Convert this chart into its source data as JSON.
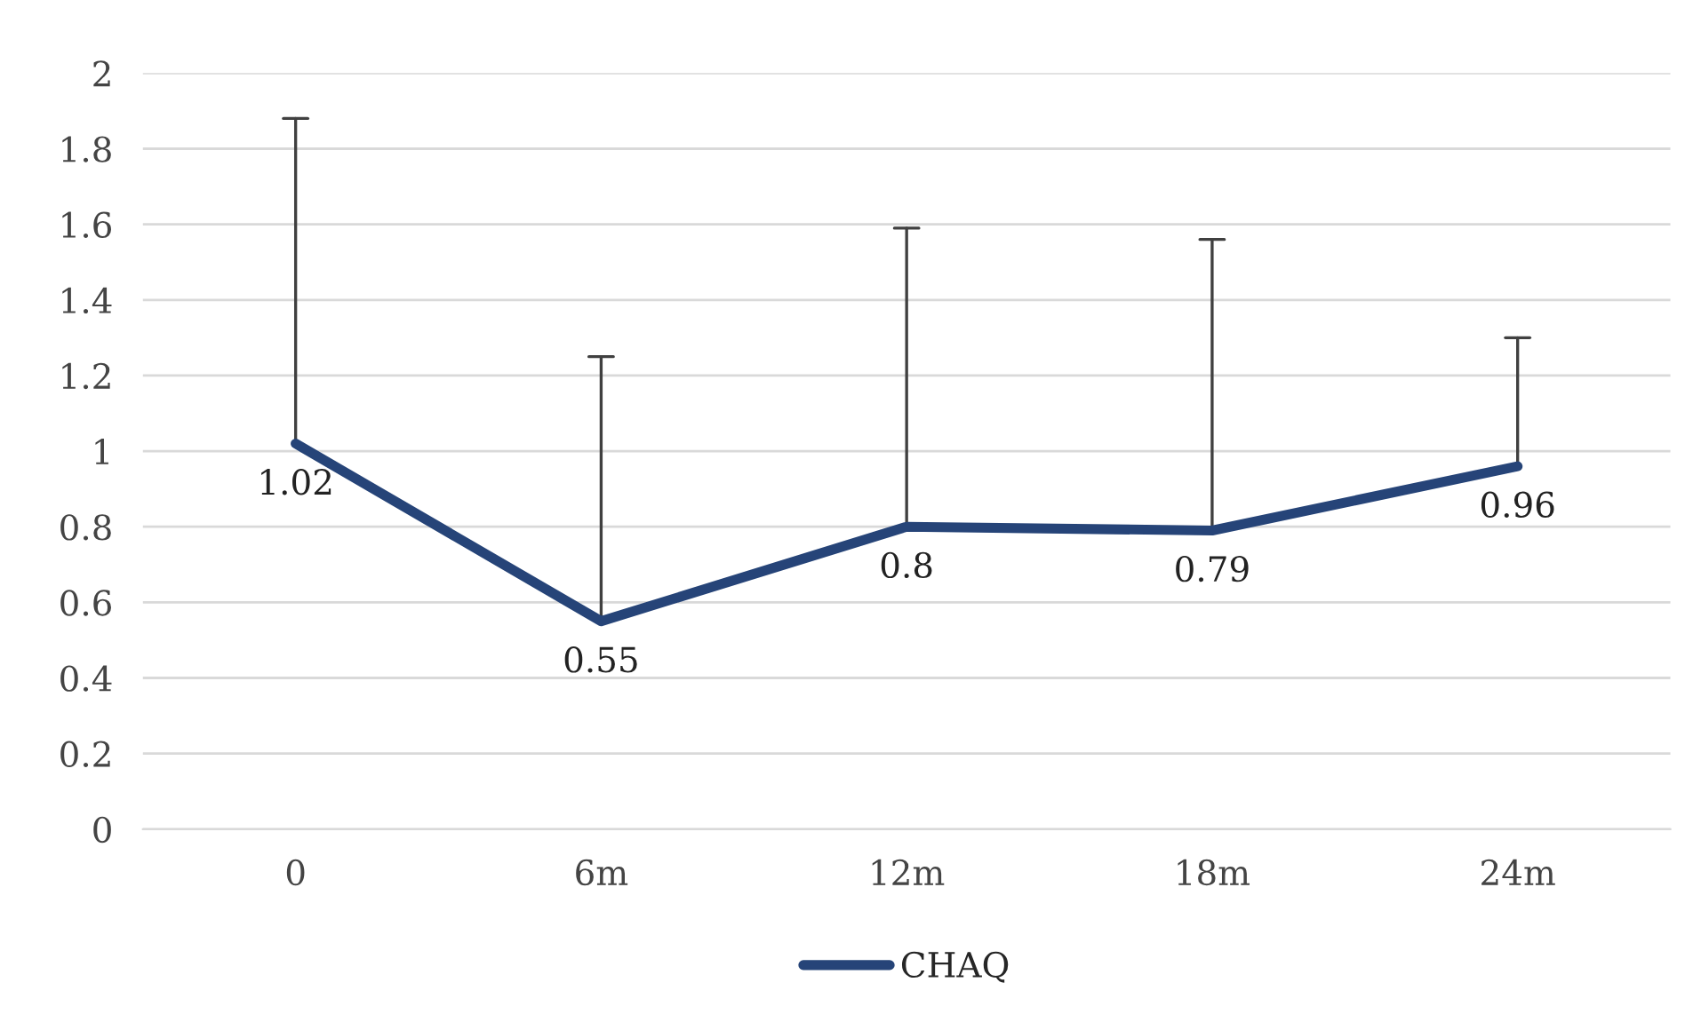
{
  "chart_data": {
    "type": "line",
    "categories": [
      "0",
      "6m",
      "12m",
      "18m",
      "24m"
    ],
    "series": [
      {
        "name": "CHAQ",
        "color": "#264478",
        "values": [
          1.02,
          0.55,
          0.8,
          0.79,
          0.96
        ],
        "errors": [
          [
            1.02,
            1.88
          ],
          [
            0.55,
            1.25
          ],
          [
            0.8,
            1.59
          ],
          [
            0.79,
            1.56
          ],
          [
            0.96,
            1.3
          ]
        ]
      }
    ],
    "ylim": [
      0,
      2
    ],
    "yticks": [
      0,
      0.2,
      0.4,
      0.6,
      0.8,
      1,
      1.2,
      1.4,
      1.6,
      1.8,
      2
    ],
    "grid": "y",
    "legend": "bottom",
    "data_labels": true,
    "marker": "none",
    "line_style": "solid"
  }
}
